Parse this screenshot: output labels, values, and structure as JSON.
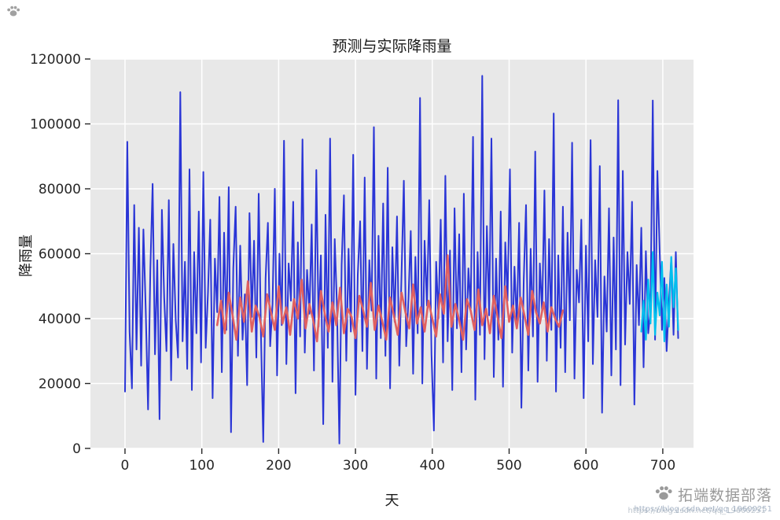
{
  "chart_data": {
    "type": "line",
    "title": "预测与实际降雨量",
    "xlabel": "天",
    "ylabel": "降雨量",
    "xlim": [
      -45,
      740
    ],
    "ylim": [
      0,
      120000
    ],
    "xticks": [
      0,
      100,
      200,
      300,
      400,
      500,
      600,
      700
    ],
    "yticks": [
      0,
      20000,
      40000,
      60000,
      80000,
      100000,
      120000
    ],
    "grid": true,
    "legend_position": "none",
    "plot_bg": "#e8e8e8",
    "grid_color": "#ffffff",
    "tick_color": "#262626",
    "series": [
      {
        "name": "blue-series",
        "color": "#2a35d6",
        "width": 2,
        "x0": 0,
        "dx": 3,
        "values": [
          17500,
          94500,
          36000,
          18500,
          75000,
          30500,
          68000,
          25500,
          67500,
          43000,
          12000,
          55000,
          81500,
          29000,
          58000,
          9000,
          73500,
          46500,
          30000,
          76500,
          21000,
          63000,
          39500,
          28000,
          109800,
          33000,
          57500,
          24500,
          86000,
          18000,
          60500,
          35500,
          73000,
          26500,
          85200,
          31000,
          48000,
          70500,
          15500,
          58500,
          42000,
          77500,
          23500,
          66500,
          36500,
          80500,
          5000,
          55500,
          74500,
          28500,
          62500,
          33500,
          47500,
          19500,
          72500,
          40500,
          64000,
          28000,
          78500,
          35000,
          2000,
          52500,
          69500,
          31500,
          44500,
          80000,
          22500,
          60000,
          38000,
          94800,
          26000,
          57000,
          45500,
          76000,
          17000,
          63500,
          34500,
          95200,
          29500,
          55000,
          41500,
          69000,
          24000,
          85800,
          37500,
          59500,
          7500,
          72000,
          31000,
          95500,
          20500,
          64500,
          43500,
          1500,
          56500,
          78000,
          27000,
          61500,
          36000,
          90500,
          16500,
          53500,
          70000,
          30000,
          83500,
          24500,
          58000,
          42500,
          99000,
          21500,
          65500,
          34000,
          75500,
          28500,
          86500,
          18500,
          62000,
          39000,
          71500,
          25500,
          54000,
          82500,
          31500,
          46000,
          67000,
          23000,
          59000,
          35500,
          108000,
          20000,
          64000,
          44000,
          76500,
          29000,
          5500,
          57500,
          40000,
          70500,
          26500,
          84000,
          33000,
          61000,
          18000,
          74000,
          37000,
          66000,
          23500,
          78500,
          30500,
          55500,
          43000,
          96000,
          15000,
          60500,
          35000,
          114800,
          27500,
          68500,
          41000,
          95500,
          22000,
          58500,
          33500,
          73000,
          19000,
          63500,
          45500,
          86000,
          29500,
          56000,
          38500,
          69500,
          12500,
          52000,
          75000,
          24000,
          61500,
          34500,
          91500,
          20500,
          57000,
          42000,
          79500,
          27000,
          64500,
          36500,
          103200,
          17500,
          59500,
          31000,
          74500,
          23500,
          66500,
          39500,
          94200,
          21500,
          55000,
          45000,
          70500,
          15500,
          62500,
          33000,
          95000,
          26000,
          58000,
          40500,
          87000,
          11000,
          53000,
          36000,
          74000,
          22500,
          65000,
          30500,
          107300,
          19500,
          85500,
          32000,
          60500,
          44500,
          76000,
          13500,
          56500,
          38000,
          68000,
          25000,
          60800,
          35500,
          42500,
          107200,
          33500,
          85500,
          60500,
          36500,
          52500,
          30000,
          45000,
          58500,
          35000,
          60500,
          34000
        ]
      },
      {
        "name": "red-series",
        "color": "#e06060",
        "width": 2.6,
        "x0": 120,
        "dx": 5,
        "values": [
          38000,
          45500,
          35500,
          48000,
          41000,
          33500,
          46500,
          39000,
          51500,
          36000,
          44000,
          40500,
          34500,
          47500,
          42000,
          36500,
          50000,
          38500,
          43500,
          35000,
          46000,
          40000,
          52000,
          37000,
          44500,
          39500,
          33000,
          48500,
          41500,
          36000,
          45000,
          38000,
          49500,
          35500,
          43000,
          40500,
          34000,
          47000,
          42500,
          37500,
          51000,
          36500,
          44000,
          39000,
          33500,
          46500,
          41000,
          35000,
          48000,
          42000,
          37000,
          50500,
          38500,
          43500,
          36000,
          45500,
          40000,
          34500,
          47500,
          41500,
          59500,
          37500,
          44500,
          39500,
          33500,
          46000,
          42500,
          36500,
          49000,
          38000,
          43000,
          35500,
          47000,
          40500,
          34000,
          50000,
          39000,
          44000,
          37000,
          46500,
          41000,
          35000,
          48500,
          42000,
          38500,
          45000,
          36000,
          43500,
          40000,
          37500,
          42500
        ]
      },
      {
        "name": "cyan-series",
        "color": "#00bfee",
        "width": 2.2,
        "x0": 672,
        "dx": 3,
        "values": [
          36000,
          45500,
          33500,
          52000,
          38500,
          60500,
          35000,
          48000,
          41000,
          57500,
          33000,
          50500,
          37500,
          59000,
          43500,
          55500,
          36500
        ]
      }
    ]
  },
  "watermark": {
    "brand": "拓端数据部落",
    "url": "https://blog.csdn.net/qq_19600251"
  }
}
